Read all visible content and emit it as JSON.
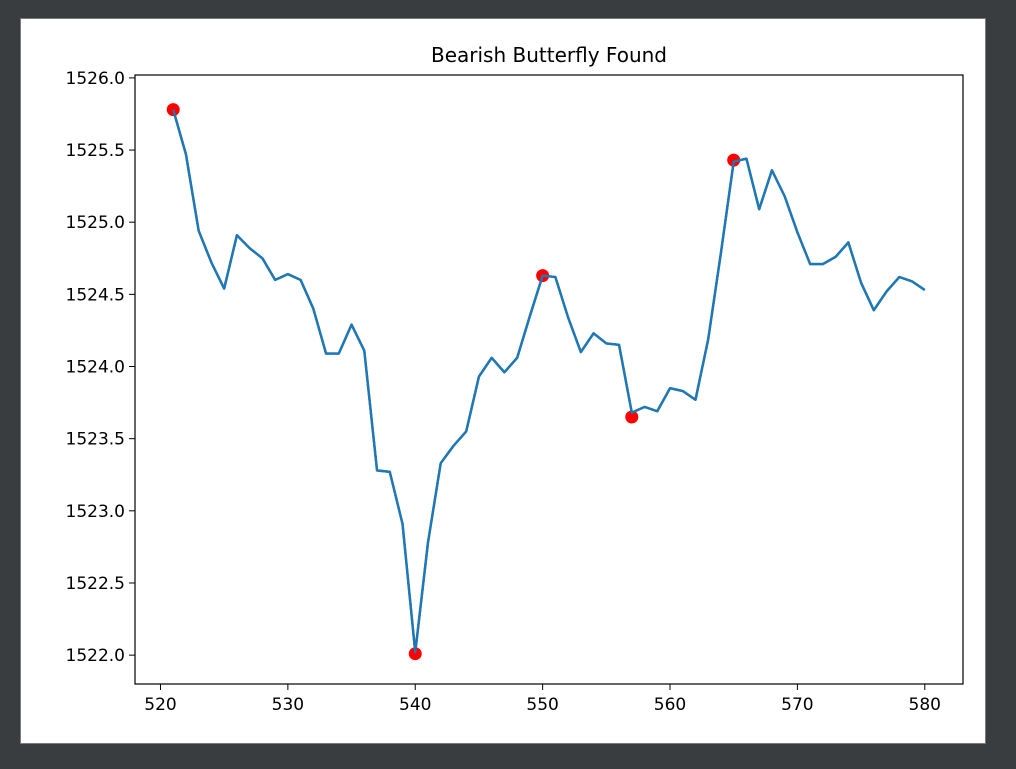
{
  "chart_data": {
    "type": "line",
    "title": "Bearish Butterfly Found",
    "xlabel": "",
    "ylabel": "",
    "xlim": [
      518,
      583
    ],
    "ylim": [
      1521.8,
      1526.02
    ],
    "x_ticks": [
      520,
      530,
      540,
      550,
      560,
      570,
      580
    ],
    "y_ticks": [
      1522.0,
      1522.5,
      1523.0,
      1523.5,
      1524.0,
      1524.5,
      1525.0,
      1525.5,
      1526.0
    ],
    "grid": false,
    "series": [
      {
        "color": "#1f77b4",
        "x": [
          521,
          522,
          523,
          524,
          525,
          526,
          527,
          528,
          529,
          530,
          531,
          532,
          533,
          534,
          535,
          536,
          537,
          538,
          539,
          540,
          541,
          542,
          543,
          544,
          545,
          546,
          547,
          548,
          549,
          550,
          551,
          552,
          553,
          554,
          555,
          556,
          557,
          558,
          559,
          560,
          561,
          562,
          563,
          564,
          565,
          566,
          567,
          568,
          569,
          570,
          571,
          572,
          573,
          574,
          575,
          576,
          577,
          578,
          579,
          580
        ],
        "y": [
          1525.78,
          1525.47,
          1524.94,
          1524.72,
          1524.54,
          1524.91,
          1524.82,
          1524.75,
          1524.6,
          1524.64,
          1524.6,
          1524.4,
          1524.09,
          1524.09,
          1524.29,
          1524.11,
          1523.28,
          1523.27,
          1522.91,
          1522.02,
          1522.78,
          1523.33,
          1523.45,
          1523.55,
          1523.93,
          1524.06,
          1523.96,
          1524.06,
          1524.35,
          1524.63,
          1524.62,
          1524.34,
          1524.1,
          1524.23,
          1524.16,
          1524.15,
          1523.68,
          1523.72,
          1523.69,
          1523.85,
          1523.83,
          1523.77,
          1524.19,
          1524.79,
          1525.42,
          1525.44,
          1525.09,
          1525.36,
          1525.18,
          1524.93,
          1524.71,
          1524.71,
          1524.76,
          1524.86,
          1524.58,
          1524.39,
          1524.52,
          1524.62,
          1524.59,
          1524.53
        ]
      }
    ],
    "markers": {
      "color": "#ff0000",
      "points": [
        {
          "x": 521,
          "y": 1525.78
        },
        {
          "x": 540,
          "y": 1522.01
        },
        {
          "x": 550,
          "y": 1524.63
        },
        {
          "x": 557,
          "y": 1523.65
        },
        {
          "x": 565,
          "y": 1525.43
        }
      ]
    }
  }
}
